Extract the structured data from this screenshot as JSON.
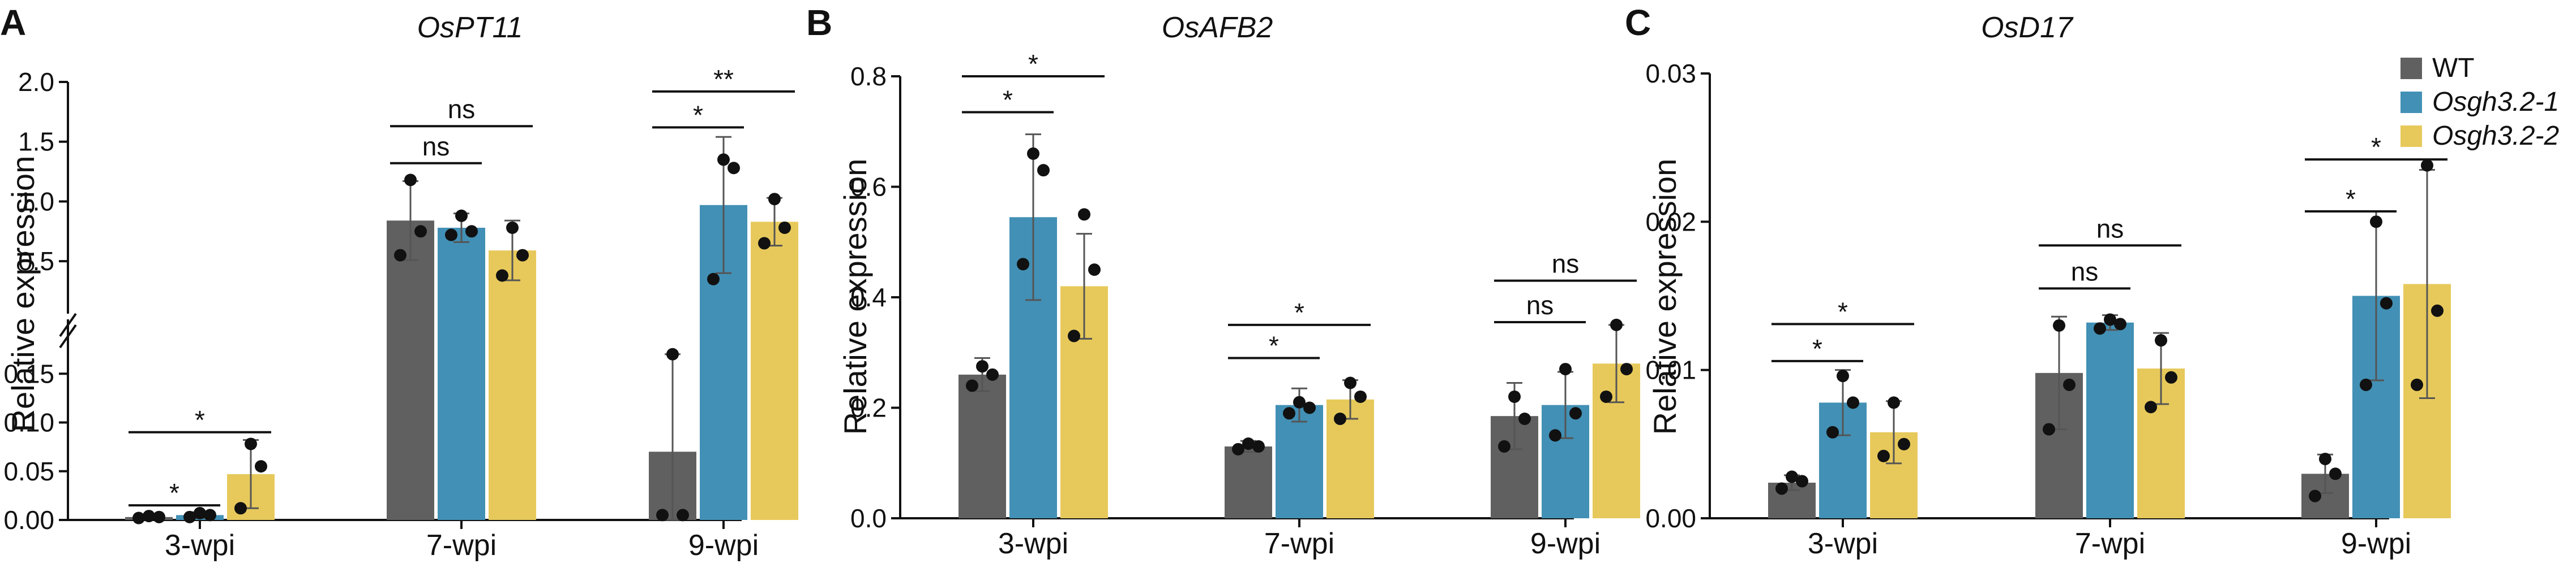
{
  "colors": {
    "wt": "#606060",
    "osgh1": "#4290b5",
    "osgh2": "#e7c95b",
    "axis": "#111111",
    "point": "#111111",
    "errorbar": "#555555"
  },
  "legend": {
    "items": [
      {
        "label": "WT",
        "color": "#606060",
        "italic": false
      },
      {
        "label": "Osgh3.2-1",
        "color": "#4290b5",
        "italic": true
      },
      {
        "label": "Osgh3.2-2",
        "color": "#e7c95b",
        "italic": true
      }
    ]
  },
  "chart_data": [
    {
      "panel": "A",
      "type": "bar",
      "title": "OsPT11",
      "title_italic": true,
      "ylabel": "Relative expression",
      "xlabel": "",
      "categories": [
        "3-wpi",
        "7-wpi",
        "9-wpi"
      ],
      "y_broken": true,
      "y_lower": {
        "range": [
          0,
          0.2
        ],
        "ticks": [
          "0.00",
          "0.05",
          "0.10",
          "0.15"
        ]
      },
      "y_upper": {
        "range": [
          0.25,
          2.0
        ],
        "ticks": [
          "0.5",
          "1.0",
          "1.5",
          "2.0"
        ]
      },
      "series": [
        {
          "name": "WT",
          "values": [
            0.003,
            0.84,
            0.07
          ],
          "sd": [
            0.002,
            0.33,
            0.1
          ],
          "points": [
            [
              0.002,
              0.003,
              0.004
            ],
            [
              0.55,
              0.75,
              1.18
            ],
            [
              0.005,
              0.005,
              0.17
            ]
          ]
        },
        {
          "name": "Osgh3.2-1",
          "values": [
            0.005,
            0.78,
            0.97
          ],
          "sd": [
            0.003,
            0.12,
            0.57
          ],
          "points": [
            [
              0.003,
              0.005,
              0.007
            ],
            [
              0.72,
              0.75,
              0.88
            ],
            [
              0.35,
              1.28,
              1.35
            ]
          ]
        },
        {
          "name": "Osgh3.2-2",
          "values": [
            0.047,
            0.59,
            0.83
          ],
          "sd": [
            0.035,
            0.25,
            0.2
          ],
          "points": [
            [
              0.012,
              0.055,
              0.078
            ],
            [
              0.38,
              0.55,
              0.78
            ],
            [
              0.65,
              0.78,
              1.02
            ]
          ]
        }
      ],
      "significance": [
        {
          "category": "3-wpi",
          "from": "WT",
          "to": "Osgh3.2-1",
          "label": "*",
          "y": 0.015
        },
        {
          "category": "3-wpi",
          "from": "WT",
          "to": "Osgh3.2-2",
          "label": "*",
          "y": 0.09
        },
        {
          "category": "7-wpi",
          "from": "WT",
          "to": "Osgh3.2-1",
          "label": "ns",
          "y": 1.32
        },
        {
          "category": "7-wpi",
          "from": "WT",
          "to": "Osgh3.2-2",
          "label": "ns",
          "y": 1.63
        },
        {
          "category": "9-wpi",
          "from": "WT",
          "to": "Osgh3.2-1",
          "label": "*",
          "y": 1.62
        },
        {
          "category": "9-wpi",
          "from": "WT",
          "to": "Osgh3.2-2",
          "label": "**",
          "y": 1.92
        }
      ]
    },
    {
      "panel": "B",
      "type": "bar",
      "title": "OsAFB2",
      "title_italic": true,
      "ylabel": "Relative expression",
      "xlabel": "",
      "categories": [
        "3-wpi",
        "7-wpi",
        "9-wpi"
      ],
      "ylim": [
        0,
        0.8
      ],
      "yticks": [
        "0.0",
        "0.2",
        "0.4",
        "0.6",
        "0.8"
      ],
      "series": [
        {
          "name": "WT",
          "values": [
            0.26,
            0.13,
            0.185
          ],
          "sd": [
            0.03,
            0.01,
            0.06
          ],
          "points": [
            [
              0.24,
              0.26,
              0.275
            ],
            [
              0.125,
              0.13,
              0.135
            ],
            [
              0.13,
              0.18,
              0.22
            ]
          ]
        },
        {
          "name": "Osgh3.2-1",
          "values": [
            0.545,
            0.205,
            0.205
          ],
          "sd": [
            0.15,
            0.03,
            0.06
          ],
          "points": [
            [
              0.46,
              0.63,
              0.66
            ],
            [
              0.19,
              0.2,
              0.21
            ],
            [
              0.15,
              0.19,
              0.27
            ]
          ]
        },
        {
          "name": "Osgh3.2-2",
          "values": [
            0.42,
            0.215,
            0.28
          ],
          "sd": [
            0.095,
            0.035,
            0.07
          ],
          "points": [
            [
              0.33,
              0.45,
              0.55
            ],
            [
              0.18,
              0.22,
              0.245
            ],
            [
              0.22,
              0.27,
              0.35
            ]
          ]
        }
      ],
      "significance": [
        {
          "category": "3-wpi",
          "from": "WT",
          "to": "Osgh3.2-1",
          "label": "*",
          "y": 0.735
        },
        {
          "category": "3-wpi",
          "from": "WT",
          "to": "Osgh3.2-2",
          "label": "*",
          "y": 0.8
        },
        {
          "category": "7-wpi",
          "from": "WT",
          "to": "Osgh3.2-1",
          "label": "*",
          "y": 0.29
        },
        {
          "category": "7-wpi",
          "from": "WT",
          "to": "Osgh3.2-2",
          "label": "*",
          "y": 0.35
        },
        {
          "category": "9-wpi",
          "from": "WT",
          "to": "Osgh3.2-1",
          "label": "ns",
          "y": 0.355
        },
        {
          "category": "9-wpi",
          "from": "WT",
          "to": "Osgh3.2-2",
          "label": "ns",
          "y": 0.43
        }
      ]
    },
    {
      "panel": "C",
      "type": "bar",
      "title": "OsD17",
      "title_italic": true,
      "ylabel": "Relative expression",
      "xlabel": "",
      "categories": [
        "3-wpi",
        "7-wpi",
        "9-wpi"
      ],
      "ylim": [
        0,
        0.03
      ],
      "yticks": [
        "0.00",
        "0.01",
        "0.02",
        "0.03"
      ],
      "series": [
        {
          "name": "WT",
          "values": [
            0.0024,
            0.0098,
            0.003
          ],
          "sd": [
            0.0005,
            0.0038,
            0.0013
          ],
          "points": [
            [
              0.002,
              0.0025,
              0.0028
            ],
            [
              0.006,
              0.009,
              0.013
            ],
            [
              0.0015,
              0.003,
              0.004
            ]
          ]
        },
        {
          "name": "Osgh3.2-1",
          "values": [
            0.0078,
            0.0132,
            0.015
          ],
          "sd": [
            0.0022,
            0.0005,
            0.0057
          ],
          "points": [
            [
              0.0058,
              0.0078,
              0.0096
            ],
            [
              0.0128,
              0.0131,
              0.0134
            ],
            [
              0.009,
              0.0145,
              0.02
            ]
          ]
        },
        {
          "name": "Osgh3.2-2",
          "values": [
            0.0058,
            0.0101,
            0.0158
          ],
          "sd": [
            0.0021,
            0.0024,
            0.0077
          ],
          "points": [
            [
              0.0042,
              0.005,
              0.0078
            ],
            [
              0.0075,
              0.0095,
              0.012
            ],
            [
              0.009,
              0.014,
              0.0238
            ]
          ]
        }
      ],
      "significance": [
        {
          "category": "3-wpi",
          "from": "WT",
          "to": "Osgh3.2-1",
          "label": "*",
          "y": 0.0106
        },
        {
          "category": "3-wpi",
          "from": "WT",
          "to": "Osgh3.2-2",
          "label": "*",
          "y": 0.0131
        },
        {
          "category": "7-wpi",
          "from": "WT",
          "to": "Osgh3.2-1",
          "label": "ns",
          "y": 0.0155
        },
        {
          "category": "7-wpi",
          "from": "WT",
          "to": "Osgh3.2-2",
          "label": "ns",
          "y": 0.0184
        },
        {
          "category": "9-wpi",
          "from": "WT",
          "to": "Osgh3.2-1",
          "label": "*",
          "y": 0.0207
        },
        {
          "category": "9-wpi",
          "from": "WT",
          "to": "Osgh3.2-2",
          "label": "*",
          "y": 0.0242
        }
      ]
    }
  ]
}
